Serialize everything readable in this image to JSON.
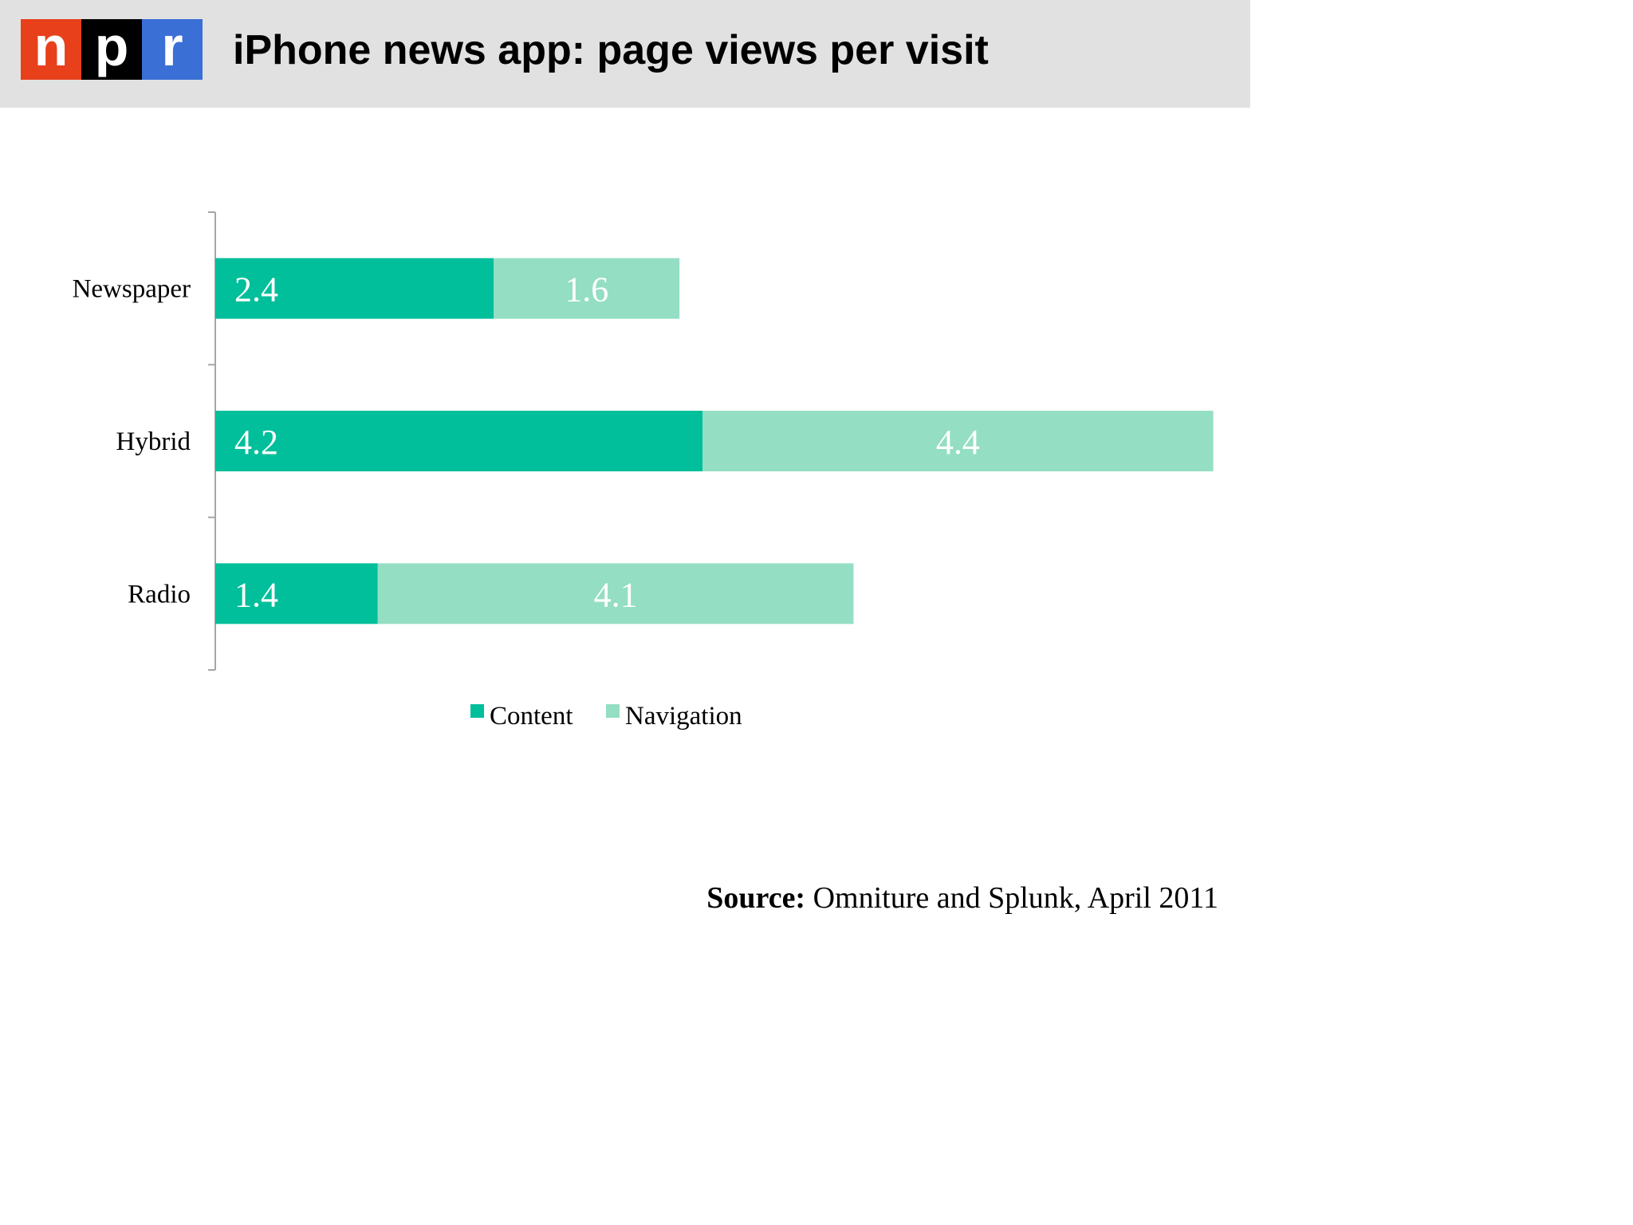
{
  "logo": {
    "letters": [
      {
        "char": "n",
        "bg": "#e8401b"
      },
      {
        "char": "p",
        "bg": "#000000"
      },
      {
        "char": "r",
        "bg": "#3a6fd5"
      }
    ]
  },
  "title": "iPhone news app: page views per visit",
  "source": {
    "label": "Source:",
    "text": " Omniture and Splunk, April 2011"
  },
  "chart_data": {
    "type": "bar",
    "orientation": "horizontal",
    "stacked": true,
    "categories": [
      "Newspaper",
      "Hybrid",
      "Radio"
    ],
    "series": [
      {
        "name": "Content",
        "values": [
          2.4,
          4.2,
          1.4
        ],
        "color": "#00bf9a",
        "labels": [
          "2.4",
          "4.2",
          "1.4"
        ]
      },
      {
        "name": "Navigation",
        "values": [
          1.6,
          4.4,
          4.1
        ],
        "color": "#94dec4",
        "labels": [
          "1.6",
          "4.4",
          "4.1"
        ]
      }
    ],
    "title": "",
    "xlabel": "",
    "ylabel": "",
    "xlim": [
      0,
      8.6
    ],
    "grid": false,
    "legend": "bottom",
    "data_label_color": "#ffffff",
    "axis_color": "#a6a6a6"
  }
}
